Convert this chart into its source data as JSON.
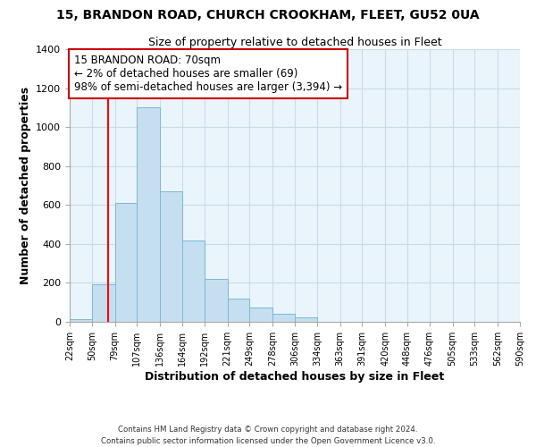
{
  "title_line1": "15, BRANDON ROAD, CHURCH CROOKHAM, FLEET, GU52 0UA",
  "title_line2": "Size of property relative to detached houses in Fleet",
  "xlabel": "Distribution of detached houses by size in Fleet",
  "ylabel": "Number of detached properties",
  "bar_edges": [
    22,
    50,
    79,
    107,
    136,
    164,
    192,
    221,
    249,
    278,
    306,
    334,
    363,
    391,
    420,
    448,
    476,
    505,
    533,
    562,
    590
  ],
  "bar_heights": [
    15,
    195,
    610,
    1100,
    670,
    420,
    220,
    120,
    75,
    40,
    25,
    0,
    0,
    0,
    0,
    0,
    0,
    0,
    0,
    0
  ],
  "bar_color": "#c5dff0",
  "bar_edgecolor": "#7ab8d4",
  "red_line_x": 70,
  "annotation_line1": "15 BRANDON ROAD: 70sqm",
  "annotation_line2": "← 2% of detached houses are smaller (69)",
  "annotation_line3": "98% of semi-detached houses are larger (3,394) →",
  "annotation_box_edgecolor": "#cc0000",
  "annotation_box_facecolor": "#ffffff",
  "ylim": [
    0,
    1400
  ],
  "yticks": [
    0,
    200,
    400,
    600,
    800,
    1000,
    1200,
    1400
  ],
  "footnote_line1": "Contains HM Land Registry data © Crown copyright and database right 2024.",
  "footnote_line2": "Contains public sector information licensed under the Open Government Licence v3.0.",
  "background_color": "#ffffff",
  "plot_bg_color": "#eaf4fb",
  "grid_color": "#c8dce8"
}
